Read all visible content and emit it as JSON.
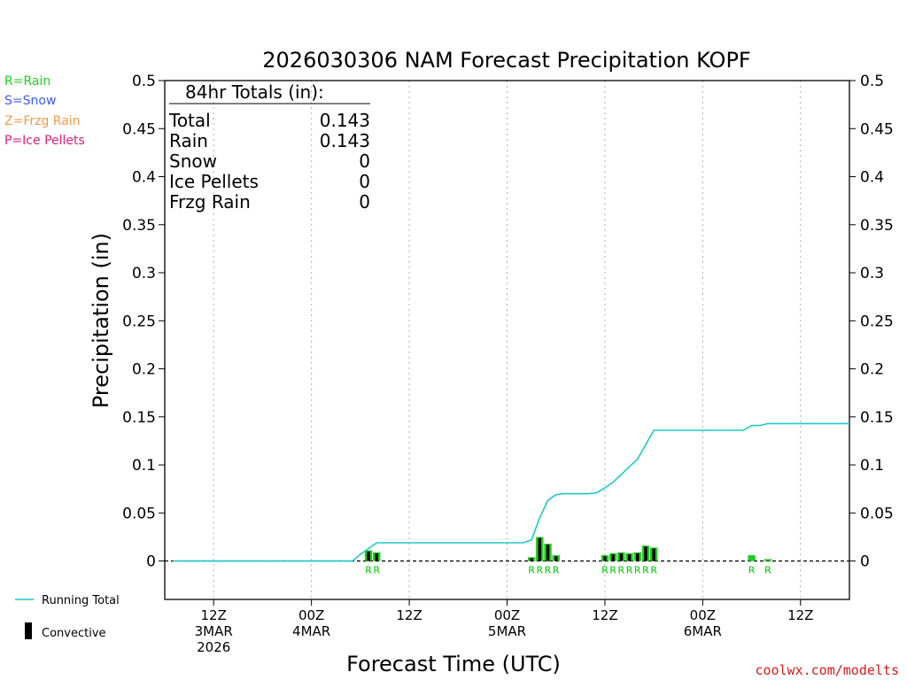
{
  "chart_data": {
    "type": "bar",
    "title": "2026030306 NAM Forecast Precipitation KOPF",
    "ylabel": "Precipitation (in)",
    "xlabel": "Forecast Time (UTC)",
    "ylim": [
      -0.04,
      0.5
    ],
    "yticks": [
      {
        "value": 0.5,
        "label": "0.5"
      },
      {
        "value": 0.45,
        "label": "0.45"
      },
      {
        "value": 0.4,
        "label": "0.4"
      },
      {
        "value": 0.35,
        "label": "0.35"
      },
      {
        "value": 0.3,
        "label": "0.3"
      },
      {
        "value": 0.25,
        "label": "0.25"
      },
      {
        "value": 0.2,
        "label": "0.2"
      },
      {
        "value": 0.15,
        "label": "0.15"
      },
      {
        "value": 0.1,
        "label": "0.1"
      },
      {
        "value": 0.05,
        "label": "0.05"
      },
      {
        "value": 0,
        "label": "0"
      }
    ],
    "x_unit": "forecast hours from 2026-03-03 06Z",
    "xlim": [
      0,
      84
    ],
    "xticks": [
      {
        "hour": 6,
        "lines": [
          "12Z",
          "3MAR",
          "2026"
        ]
      },
      {
        "hour": 18,
        "lines": [
          "00Z",
          "4MAR"
        ]
      },
      {
        "hour": 30,
        "lines": [
          "12Z"
        ]
      },
      {
        "hour": 42,
        "lines": [
          "00Z",
          "5MAR"
        ]
      },
      {
        "hour": 54,
        "lines": [
          "12Z"
        ]
      },
      {
        "hour": 66,
        "lines": [
          "00Z",
          "6MAR"
        ]
      },
      {
        "hour": 78,
        "lines": [
          "12Z"
        ]
      }
    ],
    "precip_bars": [
      {
        "hour": 25,
        "rain": 0.011,
        "convective": 0.01
      },
      {
        "hour": 26,
        "rain": 0.009,
        "convective": 0.008
      },
      {
        "hour": 45,
        "rain": 0.004,
        "convective": 0.003
      },
      {
        "hour": 46,
        "rain": 0.025,
        "convective": 0.024
      },
      {
        "hour": 47,
        "rain": 0.018,
        "convective": 0.017
      },
      {
        "hour": 48,
        "rain": 0.006,
        "convective": 0.005
      },
      {
        "hour": 54,
        "rain": 0.006,
        "convective": 0.005
      },
      {
        "hour": 55,
        "rain": 0.008,
        "convective": 0.007
      },
      {
        "hour": 56,
        "rain": 0.009,
        "convective": 0.008
      },
      {
        "hour": 57,
        "rain": 0.008,
        "convective": 0.007
      },
      {
        "hour": 58,
        "rain": 0.009,
        "convective": 0.008
      },
      {
        "hour": 59,
        "rain": 0.016,
        "convective": 0.015
      },
      {
        "hour": 60,
        "rain": 0.014,
        "convective": 0.013
      },
      {
        "hour": 72,
        "rain": 0.006,
        "convective": 0
      },
      {
        "hour": 74,
        "rain": 0.002,
        "convective": 0
      }
    ],
    "running_total": {
      "hours": [
        1,
        2,
        10,
        23,
        24,
        25,
        26,
        27,
        44,
        45,
        46,
        47,
        48,
        49,
        52,
        53,
        54,
        55,
        56,
        57,
        58,
        59,
        60,
        61,
        62,
        71,
        72,
        73,
        74,
        75,
        84
      ],
      "values": [
        0,
        0,
        0,
        0,
        0.007,
        0.013,
        0.019,
        0.019,
        0.019,
        0.022,
        0.045,
        0.063,
        0.069,
        0.07,
        0.07,
        0.071,
        0.076,
        0.082,
        0.09,
        0.098,
        0.106,
        0.121,
        0.136,
        0.136,
        0.136,
        0.136,
        0.141,
        0.141,
        0.143,
        0.143,
        0.143
      ]
    },
    "type_markers": [
      {
        "hour": 25,
        "text": "R"
      },
      {
        "hour": 26,
        "text": "R"
      },
      {
        "hour": 45,
        "text": "R"
      },
      {
        "hour": 46,
        "text": "R"
      },
      {
        "hour": 47,
        "text": "R"
      },
      {
        "hour": 48,
        "text": "R"
      },
      {
        "hour": 54,
        "text": "R"
      },
      {
        "hour": 55,
        "text": "R"
      },
      {
        "hour": 56,
        "text": "R"
      },
      {
        "hour": 57,
        "text": "R"
      },
      {
        "hour": 58,
        "text": "R"
      },
      {
        "hour": 59,
        "text": "R"
      },
      {
        "hour": 60,
        "text": "R"
      },
      {
        "hour": 72,
        "text": "R"
      },
      {
        "hour": 74,
        "text": "R"
      }
    ]
  },
  "totals_box": {
    "heading": "84hr Totals (in):",
    "rows": [
      {
        "label": "Total",
        "value": "0.143"
      },
      {
        "label": "Rain",
        "value": "0.143"
      },
      {
        "label": "Snow",
        "value": "0"
      },
      {
        "label": "Ice Pellets",
        "value": "0"
      },
      {
        "label": "Frzg Rain",
        "value": "0"
      }
    ]
  },
  "type_legend": [
    {
      "text": "R=Rain",
      "color": "#22cc22"
    },
    {
      "text": "S=Snow",
      "color": "#3b5bff"
    },
    {
      "text": "Z=Frzg Rain",
      "color": "#f2994a"
    },
    {
      "text": "P=Ice Pellets",
      "color": "#e0207a"
    }
  ],
  "bottom_legend": {
    "running_total": "Running Total",
    "convective": "Convective"
  },
  "credit": "coolwx.com/modelts",
  "colors": {
    "rain_bar": "#22cc22",
    "convective_bar": "#000000",
    "running_total": "#1ec8c8"
  }
}
